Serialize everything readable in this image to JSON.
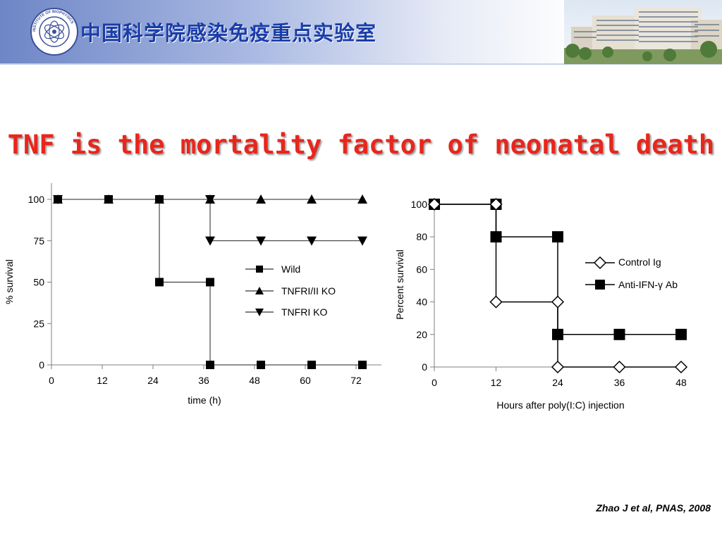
{
  "header": {
    "lab_name": "中国科学院感染免疫重点实验室",
    "logo_text": "INSTITUTE OF BIOPHYSICS",
    "banner_color": "#6e86c6"
  },
  "slide": {
    "title": "TNF is the mortality factor of neonatal death",
    "title_color": "#e8261c",
    "citation": "Zhao J et al, PNAS, 2008"
  },
  "chart_data": [
    {
      "type": "line",
      "step": true,
      "xlabel": "time (h)",
      "ylabel": "% survival",
      "xlim": [
        0,
        78
      ],
      "ylim": [
        0,
        100
      ],
      "x_ticks": [
        0,
        12,
        24,
        36,
        48,
        60,
        72
      ],
      "y_ticks": [
        0,
        25,
        50,
        75,
        100
      ],
      "grid": false,
      "legend_position": "center-right",
      "series": [
        {
          "name": "Wild",
          "marker": "square",
          "x": [
            1.5,
            13.5,
            25.5,
            25.5,
            37.5,
            37.5,
            49.5,
            61.5,
            73.5
          ],
          "y": [
            100,
            100,
            100,
            50,
            50,
            0,
            0,
            0,
            0
          ]
        },
        {
          "name": "TNFRI/II KO",
          "marker": "triangle-up",
          "x": [
            1.5,
            13.5,
            25.5,
            37.5,
            49.5,
            61.5,
            73.5
          ],
          "y": [
            100,
            100,
            100,
            100,
            100,
            100,
            100
          ]
        },
        {
          "name": "TNFRI KO",
          "marker": "triangle-down",
          "x": [
            1.5,
            37.5,
            37.5,
            49.5,
            61.5,
            73.5
          ],
          "y": [
            100,
            100,
            75,
            75,
            75,
            75
          ]
        }
      ]
    },
    {
      "type": "line",
      "step": true,
      "xlabel": "Hours after poly(I:C) injection",
      "ylabel": "Percent survival",
      "xlim": [
        0,
        48
      ],
      "ylim": [
        0,
        100
      ],
      "x_ticks": [
        0,
        12,
        24,
        36,
        48
      ],
      "y_ticks": [
        0,
        20,
        40,
        60,
        80,
        100
      ],
      "grid": false,
      "legend_position": "right",
      "series": [
        {
          "name": "Control Ig",
          "marker": "diamond-open",
          "x": [
            0,
            12,
            12,
            24,
            24,
            36,
            48
          ],
          "y": [
            100,
            100,
            40,
            40,
            0,
            0,
            0
          ]
        },
        {
          "name": "Anti-IFN-γ Ab",
          "marker": "square-large",
          "x": [
            0,
            12,
            12,
            24,
            24,
            36,
            48
          ],
          "y": [
            100,
            100,
            80,
            80,
            20,
            20,
            20
          ]
        }
      ]
    }
  ]
}
